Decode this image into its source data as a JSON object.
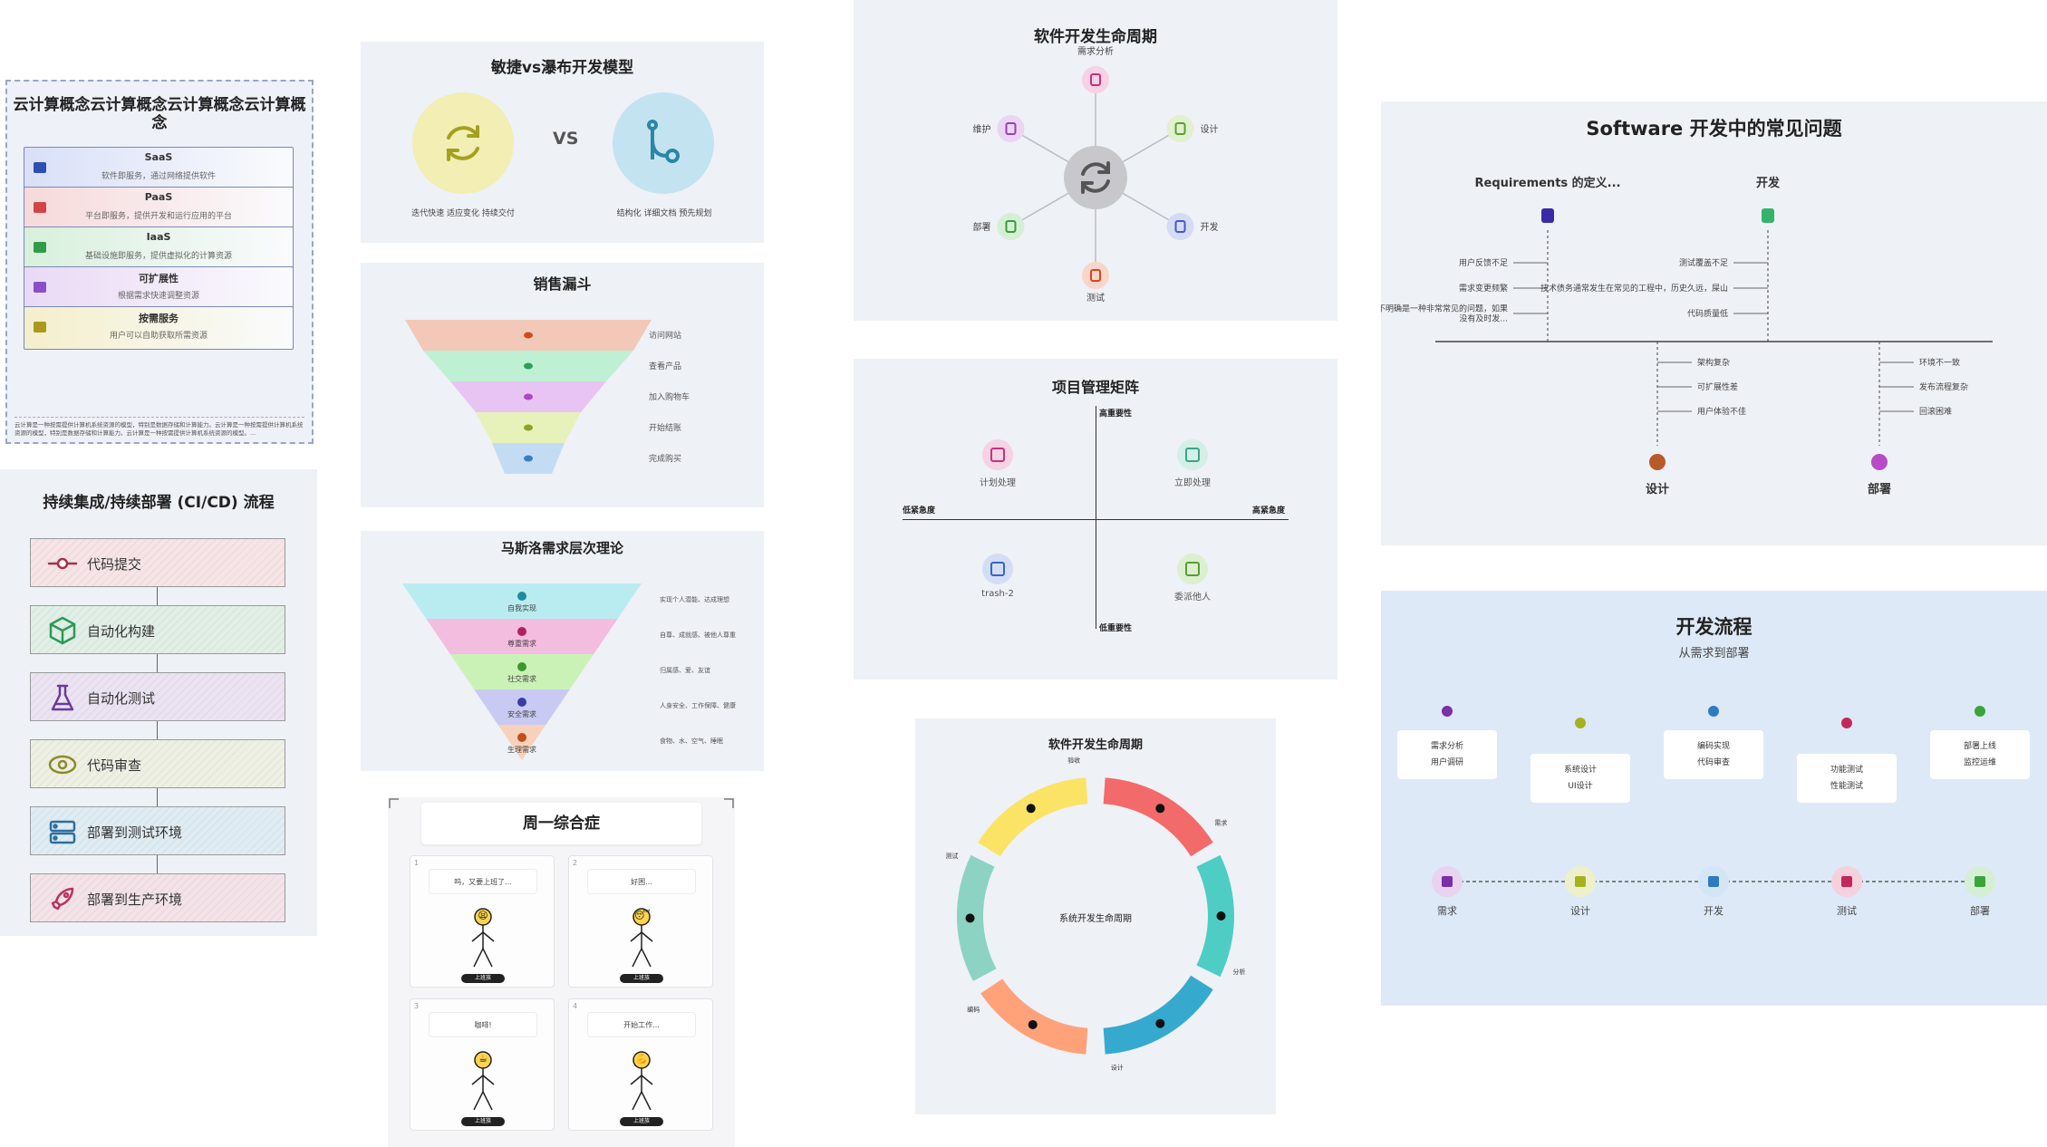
{
  "cloud": {
    "title": "云计算概念云计算概念云计算概念云计算概念",
    "items": [
      {
        "name": "SaaS",
        "desc": "软件即服务，通过网络提供软件",
        "color": "#2f4fb5",
        "bg": "#d9e0f7"
      },
      {
        "name": "PaaS",
        "desc": "平台即服务，提供开发和运行应用的平台",
        "color": "#d24545",
        "bg": "#f7d9da"
      },
      {
        "name": "IaaS",
        "desc": "基础设施即服务，提供虚拟化的计算资源",
        "color": "#2e9c4a",
        "bg": "#d8f0dc"
      },
      {
        "name": "可扩展性",
        "desc": "根据需求快速调整资源",
        "color": "#8a4fc8",
        "bg": "#ead9f5"
      },
      {
        "name": "按需服务",
        "desc": "用户可以自助获取所需资源",
        "color": "#a99a1c",
        "bg": "#f4efcc"
      }
    ],
    "footer": "云计算是一种按需提供计算机系统资源的模型，特别是数据存储和计算能力。云计算是一种按需提供计算机系统资源的模型，特别是数据存储和计算能力。云计算是一种按需提供计算机系统资源的模型。..."
  },
  "cicd": {
    "title": "持续集成/持续部署 (CI/CD) 流程",
    "steps": [
      {
        "label": "代码提交",
        "color": "#a33346",
        "bg": "#f6e4e6"
      },
      {
        "label": "自动化构建",
        "color": "#2b9a57",
        "bg": "#e1efe6"
      },
      {
        "label": "自动化测试",
        "color": "#6b3a9c",
        "bg": "#ebe3f1"
      },
      {
        "label": "代码审查",
        "color": "#8c8a2a",
        "bg": "#eef0e4"
      },
      {
        "label": "部署到测试环境",
        "color": "#2c6f9e",
        "bg": "#e0ecf3"
      },
      {
        "label": "部署到生产环境",
        "color": "#b8325e",
        "bg": "#f3e3e8"
      }
    ]
  },
  "agile": {
    "title": "敏捷vs瀑布开发模型",
    "vs": "VS",
    "left_caption": "迭代快速 适应变化 持续交付",
    "right_caption": "结构化 详细文档 预先规划",
    "left_color": "#f2eeb4",
    "right_color": "#c4e3f1"
  },
  "funnel": {
    "title": "销售漏斗",
    "stages": [
      "访问网站",
      "查看产品",
      "加入购物车",
      "开始结账",
      "完成购买"
    ],
    "colors": [
      "#f2c9b9",
      "#bff0d3",
      "#e8c4f3",
      "#e6f2b9",
      "#c4dcf3"
    ],
    "icon_colors": [
      "#c8501e",
      "#2aa05a",
      "#b043c7",
      "#8ca424",
      "#3a7cc6"
    ]
  },
  "maslow": {
    "title": "马斯洛需求层次理论",
    "levels": [
      "自我实现",
      "尊重需求",
      "社交需求",
      "安全需求",
      "生理需求"
    ],
    "descs": [
      "实现个人潜能、达成理想",
      "自尊、成就感、被他人尊重",
      "归属感、爱、友谊",
      "人身安全、工作保障、健康",
      "食物、水、空气、睡眠"
    ],
    "colors": [
      "#b9ecf0",
      "#f3bde0",
      "#cbf2b6",
      "#c9caf3",
      "#f8d1bd"
    ],
    "icon_colors": [
      "#1d8ca0",
      "#b3205f",
      "#3a9b2a",
      "#3b3ba8",
      "#c24e1a"
    ]
  },
  "comic": {
    "title": "周一综合症",
    "panels": [
      {
        "num": "1",
        "text": "呜，又要上班了...",
        "caption": "上班族",
        "face": "😫"
      },
      {
        "num": "2",
        "text": "好困...",
        "caption": "上班族",
        "face": "😴"
      },
      {
        "num": "3",
        "text": "咖啡!",
        "caption": "上班族",
        "face": "☕"
      },
      {
        "num": "4",
        "text": "开始工作...",
        "caption": "上班族",
        "face": "💪"
      }
    ]
  },
  "sdlc_star": {
    "title": "软件开发生命周期",
    "nodes": [
      {
        "label": "需求分析",
        "color": "#c2347c",
        "bg": "#f7d1e4"
      },
      {
        "label": "设计",
        "color": "#5ba12a",
        "bg": "#dff1cf"
      },
      {
        "label": "开发",
        "color": "#4a56c4",
        "bg": "#d6dbf5"
      },
      {
        "label": "测试",
        "color": "#d4481e",
        "bg": "#f7d6cb"
      },
      {
        "label": "部署",
        "color": "#3a9b3a",
        "bg": "#d5efd5"
      },
      {
        "label": "维护",
        "color": "#9b3fb5",
        "bg": "#ead5f3"
      }
    ]
  },
  "matrix": {
    "title": "项目管理矩阵",
    "top": "高重要性",
    "bottom": "低重要性",
    "left": "低紧急度",
    "right": "高紧急度",
    "quadrants": [
      {
        "label": "计划处理",
        "color": "#c2347c",
        "bg": "#f5d2e4"
      },
      {
        "label": "立即处理",
        "color": "#3aa58a",
        "bg": "#d3efe6"
      },
      {
        "label": "trash-2",
        "color": "#3a63c4",
        "bg": "#d3def5"
      },
      {
        "label": "委派他人",
        "color": "#5a9c32",
        "bg": "#dcefcf"
      }
    ]
  },
  "cycle": {
    "title": "软件开发生命周期",
    "center": "系统开发生命周期",
    "segments": [
      {
        "label": "需求",
        "color": "#f26a6a"
      },
      {
        "label": "分析",
        "color": "#4ecdc4"
      },
      {
        "label": "设计",
        "color": "#36a9cf"
      },
      {
        "label": "编码",
        "color": "#ffa27a"
      },
      {
        "label": "测试",
        "color": "#8cd3c4"
      },
      {
        "label": "验收",
        "color": "#fbe365"
      }
    ]
  },
  "fishbone": {
    "title": "Software 开发中的常见问题",
    "top_heads": [
      {
        "label": "Requirements 的定义...",
        "color": "#3a2aa8",
        "causes": [
          "用户反馈不足",
          "需求变更频繁",
          "需求不明确是一种非常常见的问题，如果没有及时发..."
        ]
      },
      {
        "label": "开发",
        "color": "#36b36b",
        "causes": [
          "测试覆盖不足",
          "技术债务通常发生在常见的工程中，历史久远，屎山",
          "代码质量低"
        ]
      }
    ],
    "bottom_heads": [
      {
        "label": "设计",
        "color": "#b85a28",
        "causes": [
          "架构复杂",
          "可扩展性差",
          "用户体验不佳"
        ]
      },
      {
        "label": "部署",
        "color": "#b84ac8",
        "causes": [
          "环境不一致",
          "发布流程复杂",
          "回滚困难"
        ]
      }
    ]
  },
  "devflow": {
    "title": "开发流程",
    "subtitle": "从需求到部署",
    "cards": [
      {
        "lines": [
          "需求分析",
          "用户调研"
        ],
        "color": "#7b2fa8"
      },
      {
        "lines": [
          "系统设计",
          "UI设计"
        ],
        "color": "#a5b21e"
      },
      {
        "lines": [
          "编码实现",
          "代码审查"
        ],
        "color": "#2f7bc2"
      },
      {
        "lines": [
          "功能测试",
          "性能测试"
        ],
        "color": "#c2285a"
      },
      {
        "lines": [
          "部署上线",
          "监控运维"
        ],
        "color": "#3aa53a"
      }
    ],
    "stages": [
      {
        "label": "需求",
        "color": "#7b2fa8",
        "bg": "#e8d3f0"
      },
      {
        "label": "设计",
        "color": "#a5b21e",
        "bg": "#eef0cc"
      },
      {
        "label": "开发",
        "color": "#2f7bc2",
        "bg": "#d4e5f5"
      },
      {
        "label": "测试",
        "color": "#c2285a",
        "bg": "#f4d1dd"
      },
      {
        "label": "部署",
        "color": "#3aa53a",
        "bg": "#d5efd5"
      }
    ]
  }
}
